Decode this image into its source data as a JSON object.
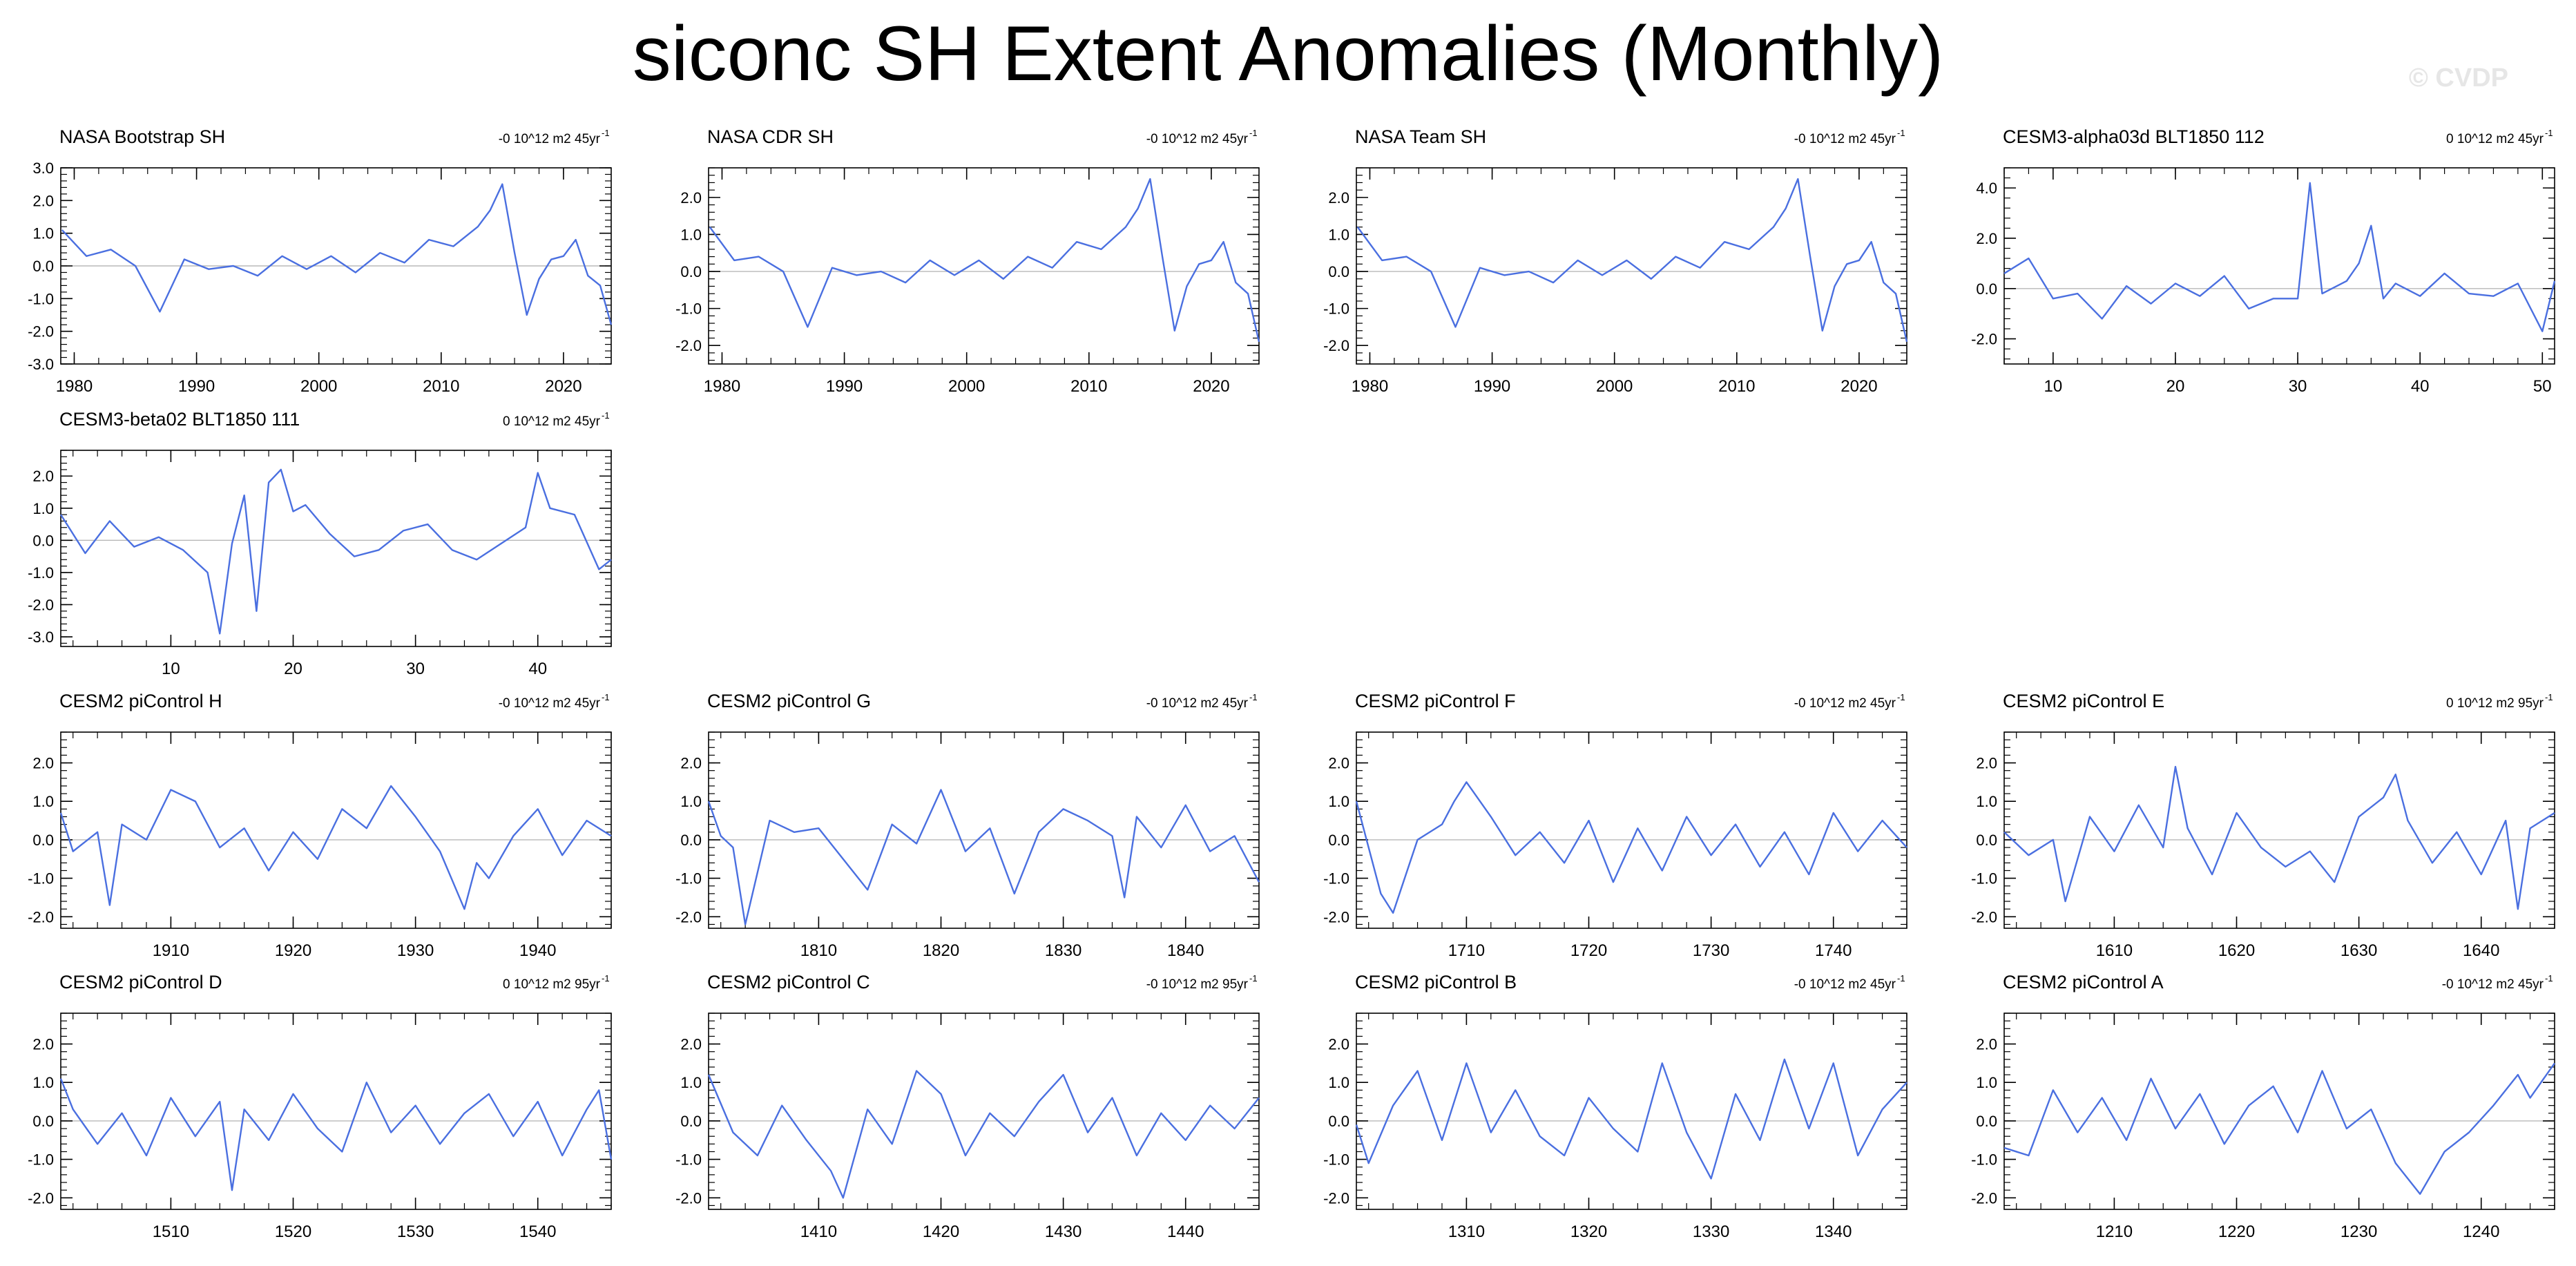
{
  "figure": {
    "title": "siconc SH Extent Anomalies (Monthly)",
    "watermark": "© CVDP",
    "line_color": "#4a6fe0"
  },
  "chart_data": [
    {
      "type": "line",
      "title": "NASA Bootstrap SH",
      "stat": "-0 10^12 m2 45yr",
      "stat_sup": "-1",
      "xlim": [
        1978.9,
        2023.9
      ],
      "ylim": [
        -3,
        3
      ],
      "xticks": [
        1980,
        1990,
        2000,
        2010,
        2020
      ],
      "yticks": [
        -3,
        -2,
        -1,
        0,
        1,
        2,
        3
      ],
      "ytick_labels": [
        "-3.0",
        "-2.0",
        "-1.0",
        "0.0",
        "1.0",
        "2.0",
        "3.0"
      ],
      "x": [
        1979,
        1981,
        1983,
        1985,
        1987,
        1989,
        1991,
        1993,
        1995,
        1997,
        1999,
        2001,
        2003,
        2005,
        2007,
        2009,
        2011,
        2013,
        2014,
        2015,
        2016,
        2017,
        2018,
        2019,
        2020,
        2021,
        2022,
        2023,
        2023.9
      ],
      "y": [
        1.1,
        0.3,
        0.5,
        0.0,
        -1.4,
        0.2,
        -0.1,
        0.0,
        -0.3,
        0.3,
        -0.1,
        0.3,
        -0.2,
        0.4,
        0.1,
        0.8,
        0.6,
        1.2,
        1.7,
        2.5,
        0.4,
        -1.5,
        -0.4,
        0.2,
        0.3,
        0.8,
        -0.3,
        -0.6,
        -1.8
      ]
    },
    {
      "type": "line",
      "title": "NASA CDR SH",
      "stat": "-0 10^12 m2 45yr",
      "stat_sup": "-1",
      "xlim": [
        1978.9,
        2023.9
      ],
      "ylim": [
        -2.5,
        2.8
      ],
      "xticks": [
        1980,
        1990,
        2000,
        2010,
        2020
      ],
      "yticks": [
        -2,
        -1,
        0,
        1,
        2
      ],
      "ytick_labels": [
        "-2.0",
        "-1.0",
        "0.0",
        "1.0",
        "2.0"
      ],
      "x": [
        1979,
        1981,
        1983,
        1985,
        1987,
        1989,
        1991,
        1993,
        1995,
        1997,
        1999,
        2001,
        2003,
        2005,
        2007,
        2009,
        2011,
        2013,
        2014,
        2015,
        2016,
        2017,
        2018,
        2019,
        2020,
        2021,
        2022,
        2023,
        2023.9
      ],
      "y": [
        1.2,
        0.3,
        0.4,
        0.0,
        -1.5,
        0.1,
        -0.1,
        0.0,
        -0.3,
        0.3,
        -0.1,
        0.3,
        -0.2,
        0.4,
        0.1,
        0.8,
        0.6,
        1.2,
        1.7,
        2.5,
        0.4,
        -1.6,
        -0.4,
        0.2,
        0.3,
        0.8,
        -0.3,
        -0.6,
        -1.9
      ]
    },
    {
      "type": "line",
      "title": "NASA Team SH",
      "stat": "-0 10^12 m2 45yr",
      "stat_sup": "-1",
      "xlim": [
        1978.9,
        2023.9
      ],
      "ylim": [
        -2.5,
        2.8
      ],
      "xticks": [
        1980,
        1990,
        2000,
        2010,
        2020
      ],
      "yticks": [
        -2,
        -1,
        0,
        1,
        2
      ],
      "ytick_labels": [
        "-2.0",
        "-1.0",
        "0.0",
        "1.0",
        "2.0"
      ],
      "x": [
        1979,
        1981,
        1983,
        1985,
        1987,
        1989,
        1991,
        1993,
        1995,
        1997,
        1999,
        2001,
        2003,
        2005,
        2007,
        2009,
        2011,
        2013,
        2014,
        2015,
        2016,
        2017,
        2018,
        2019,
        2020,
        2021,
        2022,
        2023,
        2023.9
      ],
      "y": [
        1.2,
        0.3,
        0.4,
        0.0,
        -1.5,
        0.1,
        -0.1,
        0.0,
        -0.3,
        0.3,
        -0.1,
        0.3,
        -0.2,
        0.4,
        0.1,
        0.8,
        0.6,
        1.2,
        1.7,
        2.5,
        0.4,
        -1.6,
        -0.4,
        0.2,
        0.3,
        0.8,
        -0.3,
        -0.6,
        -1.9
      ]
    },
    {
      "type": "line",
      "title": "CESM3-alpha03d BLT1850 112",
      "stat": "0 10^12 m2 45yr",
      "stat_sup": "-1",
      "xlim": [
        6,
        51
      ],
      "ylim": [
        -3,
        4.8
      ],
      "xticks": [
        10,
        20,
        30,
        40,
        50
      ],
      "yticks": [
        -2,
        0,
        2,
        4
      ],
      "ytick_labels": [
        "-2.0",
        "0.0",
        "2.0",
        "4.0"
      ],
      "x": [
        6,
        8,
        10,
        12,
        14,
        16,
        18,
        20,
        22,
        24,
        26,
        28,
        30,
        31,
        32,
        34,
        35,
        36,
        37,
        38,
        40,
        42,
        44,
        46,
        48,
        50,
        51
      ],
      "y": [
        0.6,
        1.2,
        -0.4,
        -0.2,
        -1.2,
        0.1,
        -0.6,
        0.2,
        -0.3,
        0.5,
        -0.8,
        -0.4,
        -0.4,
        4.2,
        -0.2,
        0.3,
        1.0,
        2.5,
        -0.4,
        0.2,
        -0.3,
        0.6,
        -0.2,
        -0.3,
        0.2,
        -1.7,
        0.3
      ]
    },
    {
      "type": "line",
      "title": "CESM3-beta02 BLT1850 111",
      "stat": "0 10^12 m2 45yr",
      "stat_sup": "-1",
      "xlim": [
        1,
        46
      ],
      "ylim": [
        -3.3,
        2.8
      ],
      "xticks": [
        10,
        20,
        30,
        40
      ],
      "yticks": [
        -3,
        -2,
        -1,
        0,
        1,
        2
      ],
      "ytick_labels": [
        "-3.0",
        "-2.0",
        "-1.0",
        "0.0",
        "1.0",
        "2.0"
      ],
      "x": [
        1,
        3,
        5,
        7,
        9,
        11,
        13,
        14,
        15,
        16,
        17,
        18,
        19,
        20,
        21,
        23,
        25,
        27,
        29,
        31,
        33,
        35,
        37,
        39,
        40,
        41,
        43,
        45,
        46
      ],
      "y": [
        0.8,
        -0.4,
        0.6,
        -0.2,
        0.1,
        -0.3,
        -1.0,
        -2.9,
        -0.1,
        1.4,
        -2.2,
        1.8,
        2.2,
        0.9,
        1.1,
        0.2,
        -0.5,
        -0.3,
        0.3,
        0.5,
        -0.3,
        -0.6,
        -0.1,
        0.4,
        2.1,
        1.0,
        0.8,
        -0.9,
        -0.6
      ]
    },
    {
      "type": "line",
      "title": "CESM2 piControl H",
      "stat": "-0 10^12 m2 45yr",
      "stat_sup": "-1",
      "xlim": [
        1901,
        1946
      ],
      "ylim": [
        -2.3,
        2.8
      ],
      "xticks": [
        1910,
        1920,
        1930,
        1940
      ],
      "yticks": [
        -2,
        -1,
        0,
        1,
        2
      ],
      "ytick_labels": [
        "-2.0",
        "-1.0",
        "0.0",
        "1.0",
        "2.0"
      ],
      "x": [
        1901,
        1902,
        1904,
        1905,
        1906,
        1908,
        1910,
        1912,
        1914,
        1916,
        1918,
        1920,
        1922,
        1924,
        1926,
        1928,
        1930,
        1932,
        1934,
        1935,
        1936,
        1938,
        1940,
        1942,
        1944,
        1946
      ],
      "y": [
        0.7,
        -0.3,
        0.2,
        -1.7,
        0.4,
        0.0,
        1.3,
        1.0,
        -0.2,
        0.3,
        -0.8,
        0.2,
        -0.5,
        0.8,
        0.3,
        1.4,
        0.6,
        -0.3,
        -1.8,
        -0.6,
        -1.0,
        0.1,
        0.8,
        -0.4,
        0.5,
        0.1
      ]
    },
    {
      "type": "line",
      "title": "CESM2 piControl G",
      "stat": "-0 10^12 m2 45yr",
      "stat_sup": "-1",
      "xlim": [
        1801,
        1846
      ],
      "ylim": [
        -2.3,
        2.8
      ],
      "xticks": [
        1810,
        1820,
        1830,
        1840
      ],
      "yticks": [
        -2,
        -1,
        0,
        1,
        2
      ],
      "ytick_labels": [
        "-2.0",
        "-1.0",
        "0.0",
        "1.0",
        "2.0"
      ],
      "x": [
        1801,
        1802,
        1803,
        1804,
        1806,
        1808,
        1810,
        1812,
        1814,
        1816,
        1818,
        1820,
        1822,
        1824,
        1826,
        1828,
        1830,
        1832,
        1834,
        1835,
        1836,
        1838,
        1840,
        1842,
        1844,
        1846
      ],
      "y": [
        1.0,
        0.1,
        -0.2,
        -2.2,
        0.5,
        0.2,
        0.3,
        -0.5,
        -1.3,
        0.4,
        -0.1,
        1.3,
        -0.3,
        0.3,
        -1.4,
        0.2,
        0.8,
        0.5,
        0.1,
        -1.5,
        0.6,
        -0.2,
        0.9,
        -0.3,
        0.1,
        -1.1
      ]
    },
    {
      "type": "line",
      "title": "CESM2 piControl F",
      "stat": "-0 10^12 m2 45yr",
      "stat_sup": "-1",
      "xlim": [
        1701,
        1746
      ],
      "ylim": [
        -2.3,
        2.8
      ],
      "xticks": [
        1710,
        1720,
        1730,
        1740
      ],
      "yticks": [
        -2,
        -1,
        0,
        1,
        2
      ],
      "ytick_labels": [
        "-2.0",
        "-1.0",
        "0.0",
        "1.0",
        "2.0"
      ],
      "x": [
        1701,
        1702,
        1703,
        1704,
        1706,
        1708,
        1709,
        1710,
        1712,
        1714,
        1716,
        1718,
        1720,
        1722,
        1724,
        1726,
        1728,
        1730,
        1732,
        1734,
        1736,
        1738,
        1740,
        1742,
        1744,
        1746
      ],
      "y": [
        1.0,
        -0.2,
        -1.4,
        -1.9,
        0.0,
        0.4,
        1.0,
        1.5,
        0.6,
        -0.4,
        0.2,
        -0.6,
        0.5,
        -1.1,
        0.3,
        -0.8,
        0.6,
        -0.4,
        0.4,
        -0.7,
        0.2,
        -0.9,
        0.7,
        -0.3,
        0.5,
        -0.2
      ]
    },
    {
      "type": "line",
      "title": "CESM2 piControl E",
      "stat": "0 10^12 m2 95yr",
      "stat_sup": "-1",
      "xlim": [
        1601,
        1646
      ],
      "ylim": [
        -2.3,
        2.8
      ],
      "xticks": [
        1610,
        1620,
        1630,
        1640
      ],
      "yticks": [
        -2,
        -1,
        0,
        1,
        2
      ],
      "ytick_labels": [
        "-2.0",
        "-1.0",
        "0.0",
        "1.0",
        "2.0"
      ],
      "x": [
        1601,
        1603,
        1605,
        1606,
        1608,
        1610,
        1612,
        1614,
        1615,
        1616,
        1618,
        1620,
        1622,
        1624,
        1626,
        1628,
        1630,
        1632,
        1633,
        1634,
        1636,
        1638,
        1640,
        1642,
        1643,
        1644,
        1646
      ],
      "y": [
        0.2,
        -0.4,
        0.0,
        -1.6,
        0.6,
        -0.3,
        0.9,
        -0.2,
        1.9,
        0.3,
        -0.9,
        0.7,
        -0.2,
        -0.7,
        -0.3,
        -1.1,
        0.6,
        1.1,
        1.7,
        0.5,
        -0.6,
        0.2,
        -0.9,
        0.5,
        -1.8,
        0.3,
        0.7
      ]
    },
    {
      "type": "line",
      "title": "CESM2 piControl D",
      "stat": "0 10^12 m2 95yr",
      "stat_sup": "-1",
      "xlim": [
        1501,
        1546
      ],
      "ylim": [
        -2.3,
        2.8
      ],
      "xticks": [
        1510,
        1520,
        1530,
        1540
      ],
      "yticks": [
        -2,
        -1,
        0,
        1,
        2
      ],
      "ytick_labels": [
        "-2.0",
        "-1.0",
        "0.0",
        "1.0",
        "2.0"
      ],
      "x": [
        1501,
        1502,
        1504,
        1506,
        1508,
        1510,
        1512,
        1514,
        1515,
        1516,
        1518,
        1520,
        1522,
        1524,
        1526,
        1528,
        1530,
        1532,
        1534,
        1536,
        1538,
        1540,
        1542,
        1544,
        1545,
        1546
      ],
      "y": [
        1.1,
        0.3,
        -0.6,
        0.2,
        -0.9,
        0.6,
        -0.4,
        0.5,
        -1.8,
        0.3,
        -0.5,
        0.7,
        -0.2,
        -0.8,
        1.0,
        -0.3,
        0.4,
        -0.6,
        0.2,
        0.7,
        -0.4,
        0.5,
        -0.9,
        0.3,
        0.8,
        -1.0
      ]
    },
    {
      "type": "line",
      "title": "CESM2 piControl C",
      "stat": "-0 10^12 m2 95yr",
      "stat_sup": "-1",
      "xlim": [
        1401,
        1446
      ],
      "ylim": [
        -2.3,
        2.8
      ],
      "xticks": [
        1410,
        1420,
        1430,
        1440
      ],
      "yticks": [
        -2,
        -1,
        0,
        1,
        2
      ],
      "ytick_labels": [
        "-2.0",
        "-1.0",
        "0.0",
        "1.0",
        "2.0"
      ],
      "x": [
        1401,
        1403,
        1405,
        1407,
        1409,
        1411,
        1412,
        1414,
        1416,
        1418,
        1420,
        1422,
        1424,
        1426,
        1428,
        1430,
        1432,
        1434,
        1436,
        1438,
        1440,
        1442,
        1444,
        1446
      ],
      "y": [
        1.2,
        -0.3,
        -0.9,
        0.4,
        -0.5,
        -1.3,
        -2.0,
        0.3,
        -0.6,
        1.3,
        0.7,
        -0.9,
        0.2,
        -0.4,
        0.5,
        1.2,
        -0.3,
        0.6,
        -0.9,
        0.2,
        -0.5,
        0.4,
        -0.2,
        0.6
      ]
    },
    {
      "type": "line",
      "title": "CESM2 piControl B",
      "stat": "-0 10^12 m2 45yr",
      "stat_sup": "-1",
      "xlim": [
        1301,
        1346
      ],
      "ylim": [
        -2.3,
        2.8
      ],
      "xticks": [
        1310,
        1320,
        1330,
        1340
      ],
      "yticks": [
        -2,
        -1,
        0,
        1,
        2
      ],
      "ytick_labels": [
        "-2.0",
        "-1.0",
        "0.0",
        "1.0",
        "2.0"
      ],
      "x": [
        1301,
        1302,
        1304,
        1306,
        1308,
        1310,
        1312,
        1314,
        1316,
        1318,
        1320,
        1322,
        1324,
        1326,
        1328,
        1330,
        1332,
        1334,
        1336,
        1338,
        1340,
        1342,
        1344,
        1346
      ],
      "y": [
        -0.1,
        -1.1,
        0.4,
        1.3,
        -0.5,
        1.5,
        -0.3,
        0.8,
        -0.4,
        -0.9,
        0.6,
        -0.2,
        -0.8,
        1.5,
        -0.3,
        -1.5,
        0.7,
        -0.5,
        1.6,
        -0.2,
        1.5,
        -0.9,
        0.3,
        1.0
      ]
    },
    {
      "type": "line",
      "title": "CESM2 piControl A",
      "stat": "-0 10^12 m2 45yr",
      "stat_sup": "-1",
      "xlim": [
        1201,
        1246
      ],
      "ylim": [
        -2.3,
        2.8
      ],
      "xticks": [
        1210,
        1220,
        1230,
        1240
      ],
      "yticks": [
        -2,
        -1,
        0,
        1,
        2
      ],
      "ytick_labels": [
        "-2.0",
        "-1.0",
        "0.0",
        "1.0",
        "2.0"
      ],
      "x": [
        1201,
        1203,
        1205,
        1207,
        1209,
        1211,
        1213,
        1215,
        1217,
        1219,
        1221,
        1223,
        1225,
        1227,
        1229,
        1231,
        1233,
        1235,
        1237,
        1239,
        1241,
        1243,
        1244,
        1246
      ],
      "y": [
        -0.7,
        -0.9,
        0.8,
        -0.3,
        0.6,
        -0.5,
        1.1,
        -0.2,
        0.7,
        -0.6,
        0.4,
        0.9,
        -0.3,
        1.3,
        -0.2,
        0.3,
        -1.1,
        -1.9,
        -0.8,
        -0.3,
        0.4,
        1.2,
        0.6,
        1.5
      ]
    }
  ]
}
